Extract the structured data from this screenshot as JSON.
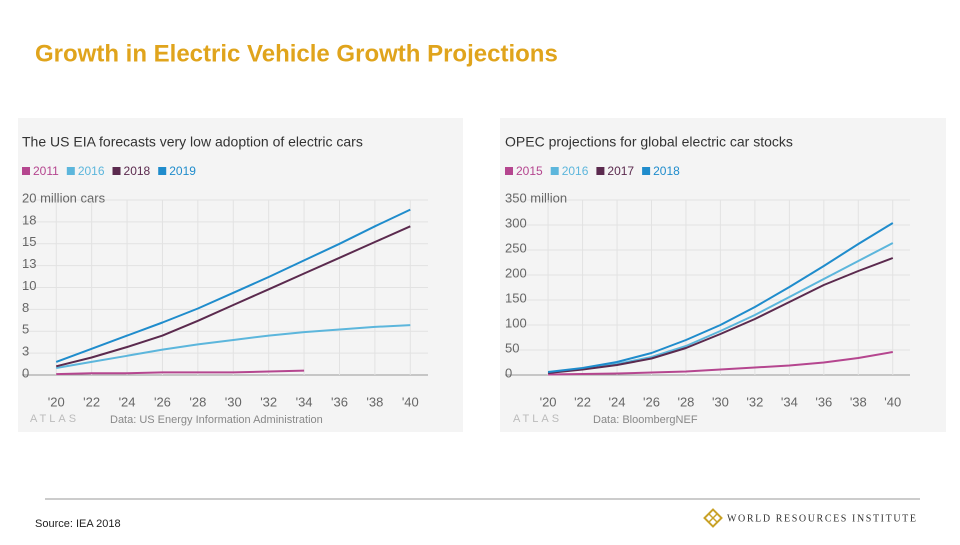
{
  "slide": {
    "title": "Growth in Electric Vehicle Growth Projections",
    "source": "Source: IEA 2018",
    "logo": "WORLD RESOURCES INSTITUTE"
  },
  "chart_data": [
    {
      "type": "line",
      "title": "The US EIA forecasts very low adoption of electric cars",
      "brand": "ATLAS",
      "source": "Data: US Energy Information Administration",
      "x": [
        2020,
        2022,
        2024,
        2026,
        2028,
        2030,
        2032,
        2034,
        2036,
        2038,
        2040
      ],
      "series": [
        {
          "name": "2011",
          "color": "#b5468f",
          "values": [
            0.1,
            0.2,
            0.2,
            0.3,
            0.3,
            0.3,
            0.4,
            0.5,
            null,
            null,
            null
          ]
        },
        {
          "name": "2016",
          "color": "#5cb6dc",
          "values": [
            0.8,
            1.5,
            2.2,
            2.9,
            3.5,
            4.0,
            4.5,
            4.9,
            5.2,
            5.5,
            5.7
          ]
        },
        {
          "name": "2018",
          "color": "#5b2a4e",
          "values": [
            1.0,
            2.0,
            3.2,
            4.5,
            6.2,
            8.0,
            9.8,
            11.6,
            13.4,
            15.2,
            17.0
          ]
        },
        {
          "name": "2019",
          "color": "#1f8ccc",
          "values": [
            1.5,
            3.0,
            4.5,
            6.0,
            7.6,
            9.4,
            11.2,
            13.1,
            15.0,
            17.0,
            18.9
          ]
        }
      ],
      "xlim": [
        2018.8,
        2041
      ],
      "xticks": [
        {
          "value": 2020,
          "label": "'20"
        },
        {
          "value": 2022,
          "label": "'22"
        },
        {
          "value": 2024,
          "label": "'24"
        },
        {
          "value": 2026,
          "label": "'26"
        },
        {
          "value": 2028,
          "label": "'28"
        },
        {
          "value": 2030,
          "label": "'30"
        },
        {
          "value": 2032,
          "label": "'32"
        },
        {
          "value": 2034,
          "label": "'34"
        },
        {
          "value": 2036,
          "label": "'36"
        },
        {
          "value": 2038,
          "label": "'38"
        },
        {
          "value": 2040,
          "label": "'40"
        }
      ],
      "ylim": [
        0,
        20
      ],
      "yticks": [
        0,
        {
          "value": 2.5,
          "label": "3"
        },
        5,
        {
          "value": 7.5,
          "label": "8"
        },
        10,
        {
          "value": 12.5,
          "label": "13"
        },
        15,
        {
          "value": 17.5,
          "label": "18"
        },
        {
          "value": 20,
          "label": "20 million cars"
        }
      ],
      "grid": true
    },
    {
      "type": "line",
      "title": "OPEC projections for global electric car stocks",
      "brand": "ATLAS",
      "source": "Data: BloombergNEF",
      "x": [
        2020,
        2022,
        2024,
        2026,
        2028,
        2030,
        2032,
        2034,
        2036,
        2038,
        2040
      ],
      "series": [
        {
          "name": "2015",
          "color": "#b5468f",
          "values": [
            1,
            2,
            3,
            5,
            7,
            11,
            15,
            19,
            25,
            34,
            46
          ]
        },
        {
          "name": "2016",
          "color": "#5cb6dc",
          "values": [
            5,
            12,
            22,
            36,
            58,
            88,
            120,
            156,
            192,
            228,
            264
          ]
        },
        {
          "name": "2017",
          "color": "#5b2a4e",
          "values": [
            4,
            11,
            20,
            33,
            54,
            82,
            112,
            146,
            180,
            208,
            234
          ]
        },
        {
          "name": "2018",
          "color": "#1f8ccc",
          "values": [
            6,
            14,
            26,
            44,
            70,
            100,
            136,
            176,
            218,
            262,
            304
          ]
        }
      ],
      "xlim": [
        2017.5,
        2041
      ],
      "xticks": [
        {
          "value": 2020,
          "label": "'20"
        },
        {
          "value": 2022,
          "label": "'22"
        },
        {
          "value": 2024,
          "label": "'24"
        },
        {
          "value": 2026,
          "label": "'26"
        },
        {
          "value": 2028,
          "label": "'28"
        },
        {
          "value": 2030,
          "label": "'30"
        },
        {
          "value": 2032,
          "label": "'32"
        },
        {
          "value": 2034,
          "label": "'34"
        },
        {
          "value": 2036,
          "label": "'36"
        },
        {
          "value": 2038,
          "label": "'38"
        },
        {
          "value": 2040,
          "label": "'40"
        }
      ],
      "ylim": [
        0,
        350
      ],
      "yticks": [
        0,
        50,
        100,
        150,
        200,
        250,
        300,
        {
          "value": 350,
          "label": "350 million"
        }
      ],
      "grid": true
    }
  ]
}
